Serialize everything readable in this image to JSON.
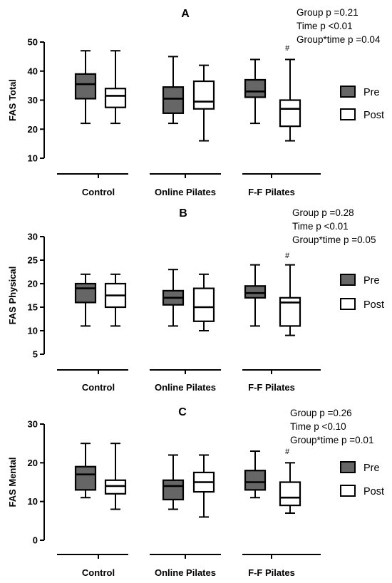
{
  "chart_data": [
    {
      "type": "boxplot",
      "panel": "A",
      "stats": [
        "Group p =0.21",
        "Time p <0.01",
        "Group*time p =0.04"
      ],
      "ylabel": "FAS Total",
      "ylim": [
        10,
        50
      ],
      "yticks": [
        10,
        20,
        30,
        40,
        50
      ],
      "categories": [
        "Control",
        "Online Pilates",
        "F-F Pilates"
      ],
      "legend": [
        "Pre",
        "Post"
      ],
      "series": [
        {
          "name": "Pre",
          "color": "#666666",
          "boxes": [
            {
              "min": 22,
              "q1": 30.5,
              "median": 35.5,
              "q3": 39,
              "max": 47
            },
            {
              "min": 22,
              "q1": 25.5,
              "median": 30.5,
              "q3": 34.5,
              "max": 45
            },
            {
              "min": 22,
              "q1": 31,
              "median": 33,
              "q3": 37,
              "max": 44
            }
          ]
        },
        {
          "name": "Post",
          "color": "#ffffff",
          "boxes": [
            {
              "min": 22,
              "q1": 27.5,
              "median": 31.5,
              "q3": 34,
              "max": 47
            },
            {
              "min": 16,
              "q1": 27,
              "median": 29.5,
              "q3": 36.5,
              "max": 42
            },
            {
              "min": 16,
              "q1": 21,
              "median": 27,
              "q3": 30,
              "max": 44
            }
          ]
        }
      ],
      "marker": "#"
    },
    {
      "type": "boxplot",
      "panel": "B",
      "stats": [
        "Group p =0.28",
        "Time p <0.01",
        "Group*time p =0.05"
      ],
      "ylabel": "FAS Physical",
      "ylim": [
        5,
        30
      ],
      "yticks": [
        5,
        10,
        15,
        20,
        25,
        30
      ],
      "categories": [
        "Control",
        "Online Pilates",
        "F-F Pilates"
      ],
      "legend": [
        "Pre",
        "Post"
      ],
      "series": [
        {
          "name": "Pre",
          "color": "#666666",
          "boxes": [
            {
              "min": 11,
              "q1": 16,
              "median": 19,
              "q3": 20,
              "max": 22
            },
            {
              "min": 11,
              "q1": 15.5,
              "median": 17,
              "q3": 18.5,
              "max": 23
            },
            {
              "min": 11,
              "q1": 17,
              "median": 18,
              "q3": 19.5,
              "max": 24
            }
          ]
        },
        {
          "name": "Post",
          "color": "#ffffff",
          "boxes": [
            {
              "min": 11,
              "q1": 15,
              "median": 17.5,
              "q3": 20,
              "max": 22
            },
            {
              "min": 10,
              "q1": 12,
              "median": 15,
              "q3": 19,
              "max": 22
            },
            {
              "min": 9,
              "q1": 11,
              "median": 16,
              "q3": 17,
              "max": 24
            }
          ]
        }
      ],
      "marker": "#"
    },
    {
      "type": "boxplot",
      "panel": "C",
      "stats": [
        "Group p =0.26",
        "Time p <0.10",
        "Group*time p =0.01"
      ],
      "ylabel": "FAS Mental",
      "ylim": [
        0,
        30
      ],
      "yticks": [
        0,
        10,
        20,
        30
      ],
      "categories": [
        "Control",
        "Online Pilates",
        "F-F Pilates"
      ],
      "legend": [
        "Pre",
        "Post"
      ],
      "series": [
        {
          "name": "Pre",
          "color": "#666666",
          "boxes": [
            {
              "min": 11,
              "q1": 13,
              "median": 17,
              "q3": 19,
              "max": 25
            },
            {
              "min": 8,
              "q1": 10.5,
              "median": 14,
              "q3": 15.5,
              "max": 22
            },
            {
              "min": 11,
              "q1": 13,
              "median": 15,
              "q3": 18,
              "max": 23
            }
          ]
        },
        {
          "name": "Post",
          "color": "#ffffff",
          "boxes": [
            {
              "min": 8,
              "q1": 12,
              "median": 14,
              "q3": 15.5,
              "max": 25
            },
            {
              "min": 6,
              "q1": 12.5,
              "median": 15,
              "q3": 17.5,
              "max": 22
            },
            {
              "min": 7,
              "q1": 9,
              "median": 11,
              "q3": 15,
              "max": 20
            }
          ]
        }
      ],
      "marker": "#"
    }
  ]
}
